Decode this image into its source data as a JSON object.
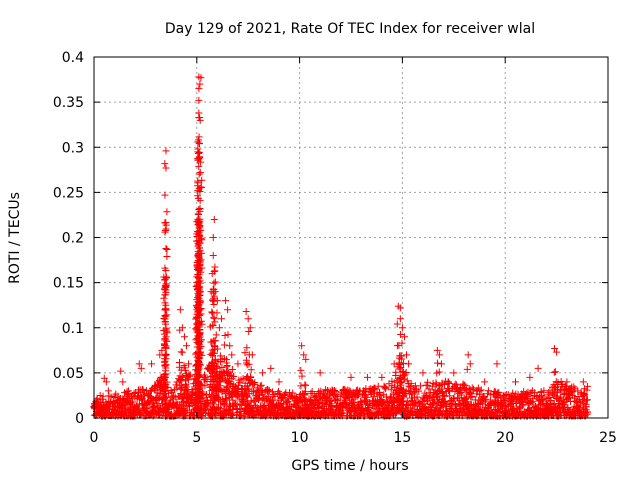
{
  "chart_data": {
    "type": "scatter",
    "title": "Day 129 of 2021, Rate Of TEC Index for receiver wlal",
    "xlabel": "GPS time / hours",
    "ylabel": "ROTI / TECUs",
    "xlim": [
      0,
      25
    ],
    "ylim": [
      0,
      0.4
    ],
    "x_ticks": [
      0,
      5,
      10,
      15,
      20,
      25
    ],
    "x_tick_labels": [
      "0",
      "5",
      "10",
      "15",
      "20",
      "25"
    ],
    "y_ticks": [
      0,
      0.05,
      0.1,
      0.15,
      0.2,
      0.25,
      0.3,
      0.35,
      0.4
    ],
    "y_tick_labels": [
      "0",
      "0.05",
      "0.1",
      "0.15",
      "0.2",
      "0.25",
      "0.3",
      "0.35",
      "0.4"
    ],
    "grid": true,
    "marker": "+",
    "color": "#ff0000",
    "series": [
      {
        "name": "ROTI",
        "notable_points": [
          {
            "x": 0.1,
            "y": 0.012
          },
          {
            "x": 0.3,
            "y": 0.025
          },
          {
            "x": 0.5,
            "y": 0.044
          },
          {
            "x": 0.6,
            "y": 0.04
          },
          {
            "x": 0.7,
            "y": 0.03
          },
          {
            "x": 1.3,
            "y": 0.052
          },
          {
            "x": 1.4,
            "y": 0.04
          },
          {
            "x": 2.2,
            "y": 0.06
          },
          {
            "x": 2.3,
            "y": 0.055
          },
          {
            "x": 2.8,
            "y": 0.06
          },
          {
            "x": 3.2,
            "y": 0.07
          },
          {
            "x": 3.3,
            "y": 0.075
          },
          {
            "x": 3.45,
            "y": 0.088
          },
          {
            "x": 3.45,
            "y": 0.12
          },
          {
            "x": 3.45,
            "y": 0.166
          },
          {
            "x": 3.45,
            "y": 0.206
          },
          {
            "x": 3.45,
            "y": 0.247
          },
          {
            "x": 3.5,
            "y": 0.277
          },
          {
            "x": 3.5,
            "y": 0.296
          },
          {
            "x": 4.2,
            "y": 0.12
          },
          {
            "x": 4.3,
            "y": 0.1
          },
          {
            "x": 4.4,
            "y": 0.09
          },
          {
            "x": 4.5,
            "y": 0.08
          },
          {
            "x": 4.6,
            "y": 0.06
          },
          {
            "x": 5.0,
            "y": 0.12
          },
          {
            "x": 5.0,
            "y": 0.15
          },
          {
            "x": 5.0,
            "y": 0.204
          },
          {
            "x": 5.05,
            "y": 0.252
          },
          {
            "x": 5.05,
            "y": 0.298
          },
          {
            "x": 5.05,
            "y": 0.306
          },
          {
            "x": 5.1,
            "y": 0.333
          },
          {
            "x": 5.1,
            "y": 0.338
          },
          {
            "x": 5.1,
            "y": 0.352
          },
          {
            "x": 5.1,
            "y": 0.365
          },
          {
            "x": 5.15,
            "y": 0.37
          },
          {
            "x": 5.1,
            "y": 0.378
          },
          {
            "x": 5.2,
            "y": 0.377
          },
          {
            "x": 5.7,
            "y": 0.14
          },
          {
            "x": 5.75,
            "y": 0.16
          },
          {
            "x": 5.8,
            "y": 0.18
          },
          {
            "x": 5.8,
            "y": 0.2
          },
          {
            "x": 5.85,
            "y": 0.22
          },
          {
            "x": 5.9,
            "y": 0.14
          },
          {
            "x": 6.0,
            "y": 0.13
          },
          {
            "x": 6.1,
            "y": 0.1
          },
          {
            "x": 6.2,
            "y": 0.11
          },
          {
            "x": 6.4,
            "y": 0.13
          },
          {
            "x": 6.5,
            "y": 0.12
          },
          {
            "x": 6.6,
            "y": 0.08
          },
          {
            "x": 6.7,
            "y": 0.07
          },
          {
            "x": 7.0,
            "y": 0.06
          },
          {
            "x": 7.4,
            "y": 0.118
          },
          {
            "x": 7.5,
            "y": 0.11
          },
          {
            "x": 7.6,
            "y": 0.1
          },
          {
            "x": 7.7,
            "y": 0.07
          },
          {
            "x": 8.2,
            "y": 0.05
          },
          {
            "x": 8.6,
            "y": 0.055
          },
          {
            "x": 9.0,
            "y": 0.04
          },
          {
            "x": 10.1,
            "y": 0.08
          },
          {
            "x": 10.2,
            "y": 0.07
          },
          {
            "x": 10.3,
            "y": 0.065
          },
          {
            "x": 11.0,
            "y": 0.05
          },
          {
            "x": 12.5,
            "y": 0.045
          },
          {
            "x": 13.3,
            "y": 0.045
          },
          {
            "x": 14.0,
            "y": 0.045
          },
          {
            "x": 14.6,
            "y": 0.06
          },
          {
            "x": 14.8,
            "y": 0.124
          },
          {
            "x": 14.9,
            "y": 0.122
          },
          {
            "x": 14.9,
            "y": 0.11
          },
          {
            "x": 15.0,
            "y": 0.1
          },
          {
            "x": 15.1,
            "y": 0.09
          },
          {
            "x": 15.2,
            "y": 0.07
          },
          {
            "x": 15.3,
            "y": 0.06
          },
          {
            "x": 16.0,
            "y": 0.05
          },
          {
            "x": 16.7,
            "y": 0.075
          },
          {
            "x": 16.8,
            "y": 0.07
          },
          {
            "x": 16.9,
            "y": 0.06
          },
          {
            "x": 17.5,
            "y": 0.05
          },
          {
            "x": 18.2,
            "y": 0.07
          },
          {
            "x": 18.3,
            "y": 0.06
          },
          {
            "x": 19.0,
            "y": 0.04
          },
          {
            "x": 19.6,
            "y": 0.06
          },
          {
            "x": 20.5,
            "y": 0.04
          },
          {
            "x": 21.2,
            "y": 0.045
          },
          {
            "x": 21.6,
            "y": 0.055
          },
          {
            "x": 22.4,
            "y": 0.077
          },
          {
            "x": 22.5,
            "y": 0.073
          },
          {
            "x": 23.0,
            "y": 0.04
          },
          {
            "x": 23.8,
            "y": 0.04
          },
          {
            "x": 24.0,
            "y": 0.035
          }
        ],
        "dense_envelope": {
          "x_start": 0,
          "x_end": 24,
          "step": 0.04,
          "typical_max": [
            [
              0,
              0.02
            ],
            [
              2,
              0.03
            ],
            [
              3,
              0.035
            ],
            [
              3.3,
              0.05
            ],
            [
              3.6,
              0.03
            ],
            [
              4.2,
              0.045
            ],
            [
              4.8,
              0.05
            ],
            [
              5.2,
              0.04
            ],
            [
              5.6,
              0.06
            ],
            [
              6.0,
              0.06
            ],
            [
              6.5,
              0.05
            ],
            [
              7.0,
              0.04
            ],
            [
              7.6,
              0.045
            ],
            [
              8.5,
              0.03
            ],
            [
              10,
              0.025
            ],
            [
              11,
              0.03
            ],
            [
              13,
              0.03
            ],
            [
              14.3,
              0.035
            ],
            [
              14.9,
              0.06
            ],
            [
              15.5,
              0.035
            ],
            [
              16.8,
              0.04
            ],
            [
              18.2,
              0.035
            ],
            [
              20,
              0.025
            ],
            [
              22,
              0.03
            ],
            [
              22.5,
              0.04
            ],
            [
              24,
              0.03
            ]
          ]
        }
      }
    ]
  }
}
